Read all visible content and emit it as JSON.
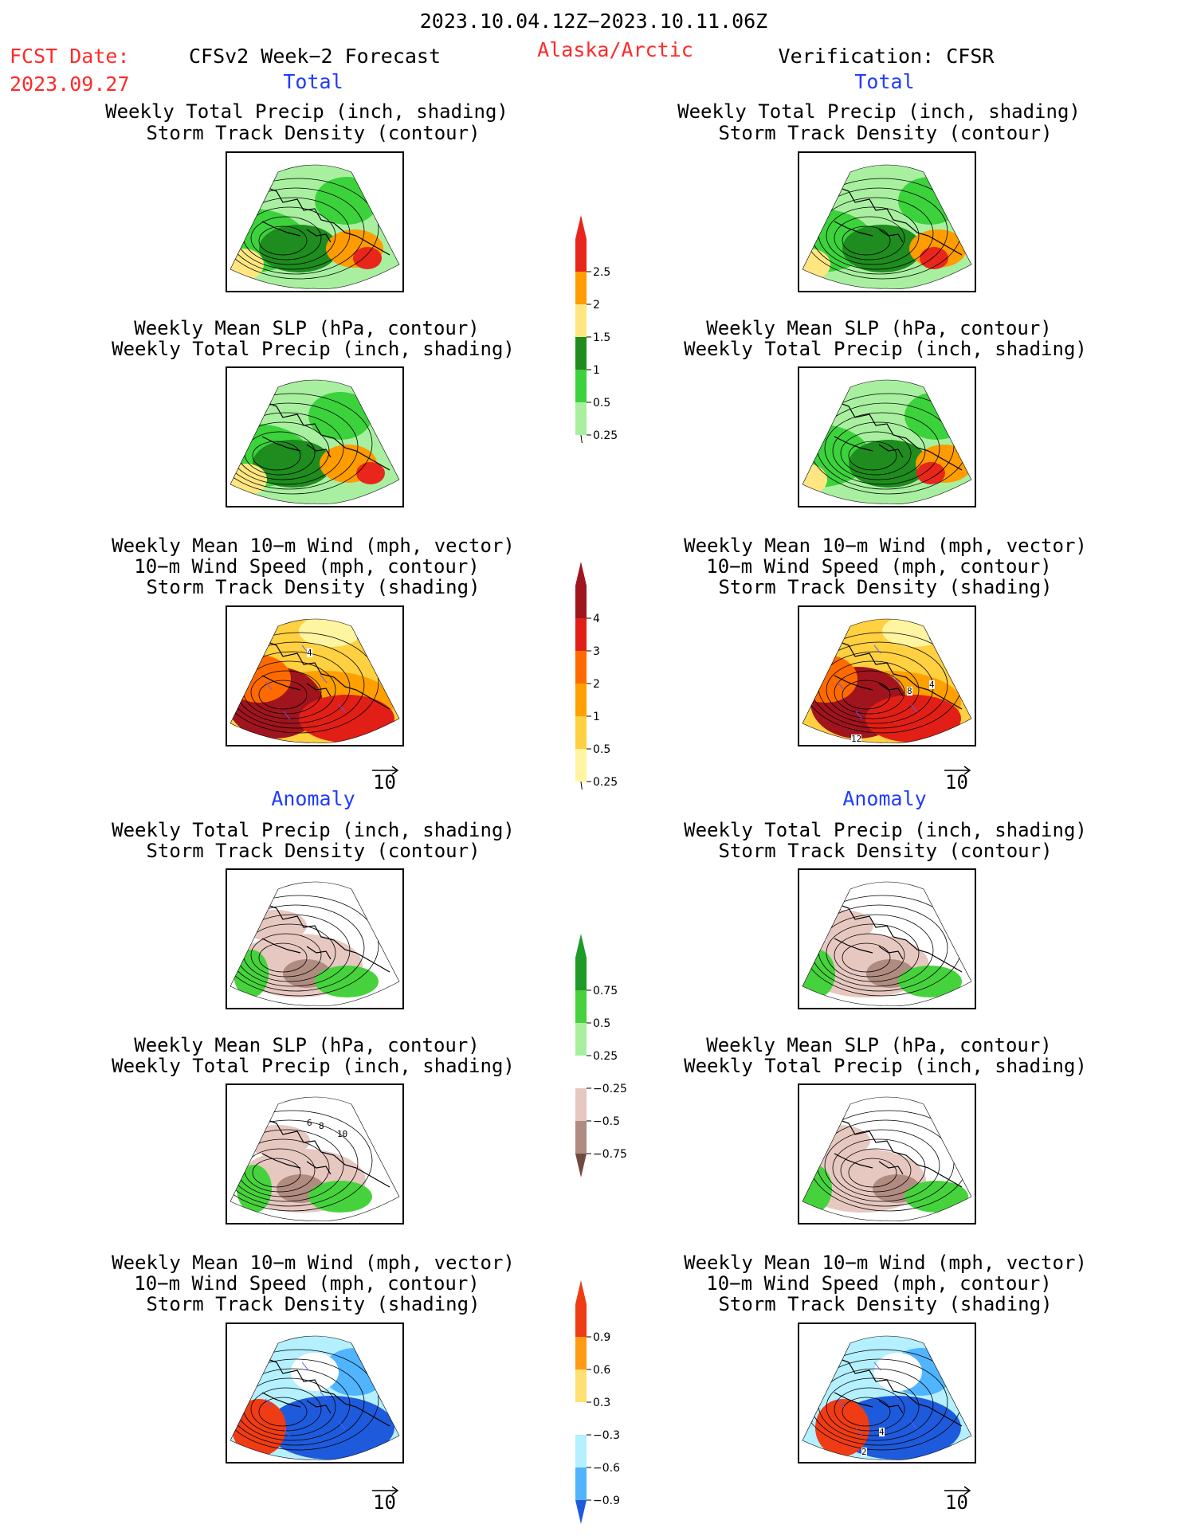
{
  "header": {
    "date_range": "2023.10.04.12Z−2023.10.11.06Z",
    "fcst_label": "FCST Date:",
    "fcst_date": "2023.09.27",
    "model": "CFSv2 Week−2 Forecast",
    "region": "Alaska/Arctic",
    "verification": "Verification: CFSR"
  },
  "sections": {
    "total": "Total",
    "anomaly": "Anomaly"
  },
  "titles": {
    "precip_storm": [
      "Weekly Total Precip (inch, shading)",
      "Storm Track Density (contour)"
    ],
    "slp_precip": [
      "Weekly Mean SLP (hPa, contour)",
      "Weekly Total Precip (inch, shading)"
    ],
    "wind_storm": [
      "Weekly Mean 10−m Wind (mph, vector)",
      "10−m Wind Speed (mph, contour)",
      "Storm Track Density (shading)"
    ]
  },
  "vector_ref": "10",
  "colorbars": {
    "precip_total": {
      "labels": [
        "2.5",
        "2",
        "1.5",
        "1",
        "0.5",
        "0.25"
      ],
      "colors": [
        "#e8261c",
        "#ff9c00",
        "#ffe680",
        "#1e8c1e",
        "#3cd23c",
        "#a8f0a0"
      ]
    },
    "storm_total": {
      "labels": [
        "4",
        "3",
        "2",
        "1",
        "0.5",
        "0.25"
      ],
      "colors": [
        "#a0141e",
        "#e11f16",
        "#ff6a00",
        "#ffa000",
        "#ffd040",
        "#fff5a0"
      ]
    },
    "precip_anom": {
      "labels": [
        "0.75",
        "0.5",
        "0.25",
        "−0.25",
        "−0.5",
        "−0.75"
      ],
      "colors": [
        "#1e9a28",
        "#46d23c",
        "#a8f0a0",
        "#ffffff",
        "#e6c8c0",
        "#b08c80",
        "#704a40"
      ]
    },
    "storm_anom": {
      "labels": [
        "0.9",
        "0.6",
        "0.3",
        "−0.3",
        "−0.6",
        "−0.9"
      ],
      "colors": [
        "#f03c14",
        "#ff9a14",
        "#ffe070",
        "#ffffff",
        "#b4f0ff",
        "#50b4ff",
        "#1e5adc"
      ]
    }
  },
  "panel_labels": {
    "wind_total_left": "4",
    "wind_total_right_a": "4",
    "wind_total_right_b": "8",
    "wind_total_right_c": "12",
    "slp_anom_left_a": "6",
    "slp_anom_left_b": "8",
    "slp_anom_left_c": "10",
    "wind_anom_right_a": "4",
    "wind_anom_right_b": "2"
  }
}
